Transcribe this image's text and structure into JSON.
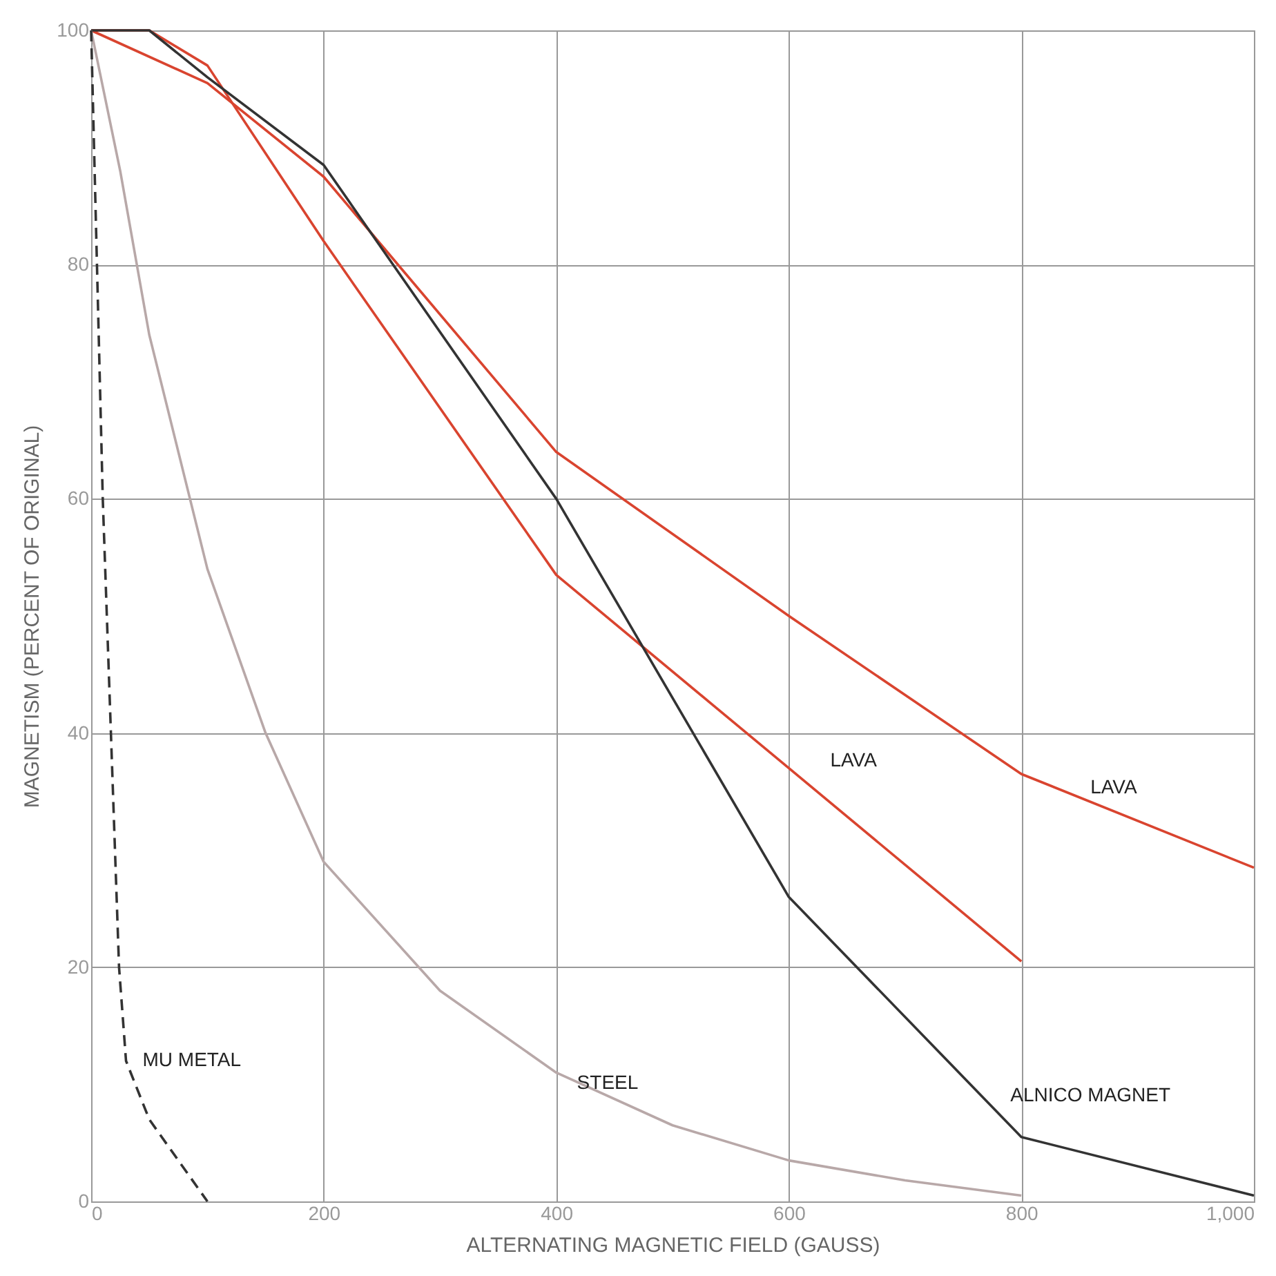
{
  "chart_data": {
    "type": "line",
    "xlabel": "ALTERNATING MAGNETIC FIELD (GAUSS)",
    "ylabel": "MAGNETISM (PERCENT OF ORIGINAL)",
    "xlim": [
      0,
      1000
    ],
    "ylim": [
      0,
      100
    ],
    "xticks": [
      0,
      200,
      400,
      600,
      800,
      {
        "value": 1000,
        "label": "1,000"
      }
    ],
    "yticks": [
      0,
      20,
      40,
      60,
      80,
      100
    ],
    "grid": true,
    "marker": "none",
    "series": [
      {
        "name": "LAVA",
        "color": "#d9442f",
        "x": [
          0,
          100,
          200,
          400,
          600,
          800,
          1000
        ],
        "values": [
          100,
          95.5,
          87.5,
          64,
          50,
          36.5,
          28.5
        ]
      },
      {
        "name": "LAVA",
        "color": "#d9442f",
        "x": [
          0,
          50,
          100,
          200,
          400,
          600,
          800
        ],
        "values": [
          100,
          100,
          97,
          82,
          53.5,
          37,
          20.5
        ]
      },
      {
        "name": "ALNICO MAGNET",
        "color": "#333333",
        "x": [
          0,
          50,
          100,
          200,
          400,
          600,
          800,
          1000
        ],
        "values": [
          100,
          100,
          96,
          88.5,
          60,
          26,
          5.5,
          0.5
        ]
      },
      {
        "name": "STEEL",
        "color": "#b8a8a8",
        "x": [
          0,
          25,
          50,
          100,
          150,
          200,
          300,
          400,
          500,
          600,
          700,
          800
        ],
        "values": [
          100,
          88,
          74,
          54,
          40,
          29,
          18,
          11,
          6.5,
          3.5,
          1.8,
          0.5
        ]
      },
      {
        "name": "MU METAL",
        "color": "#333333",
        "line_style": "dashed",
        "x": [
          0,
          5,
          10,
          17,
          24,
          30,
          50,
          75,
          100
        ],
        "values": [
          100,
          80,
          60,
          40,
          20,
          12,
          7,
          3.5,
          0
        ]
      }
    ]
  }
}
